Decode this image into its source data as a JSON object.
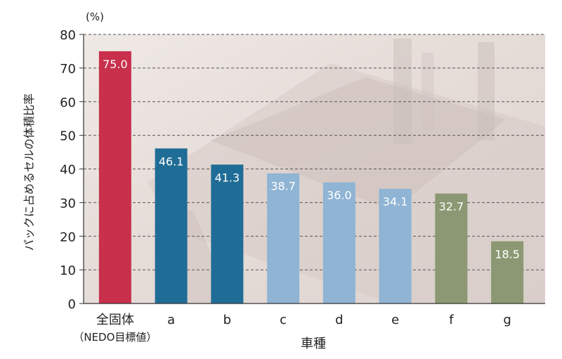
{
  "chart_data": {
    "type": "bar",
    "unit": "(%)",
    "ylabel": "パックに占めるセルの体積比率",
    "xlabel": "車種",
    "ylim": [
      0,
      80
    ],
    "yticks": [
      0,
      10,
      20,
      30,
      40,
      50,
      60,
      70,
      80
    ],
    "grid": "horizontal-dashed",
    "categories": [
      {
        "label": "全固体",
        "sublabel": "（NEDO目標値）",
        "value": 75.0,
        "value_label": "75.0",
        "color": "#c8304c"
      },
      {
        "label": "a",
        "value": 46.1,
        "value_label": "46.1",
        "color": "#1f6d96"
      },
      {
        "label": "b",
        "value": 41.3,
        "value_label": "41.3",
        "color": "#1f6d96"
      },
      {
        "label": "c",
        "value": 38.7,
        "value_label": "38.7",
        "color": "#8fb4d4"
      },
      {
        "label": "d",
        "value": 36.0,
        "value_label": "36.0",
        "color": "#8fb4d4"
      },
      {
        "label": "e",
        "value": 34.1,
        "value_label": "34.1",
        "color": "#8fb4d4"
      },
      {
        "label": "f",
        "value": 32.7,
        "value_label": "32.7",
        "color": "#8c9873"
      },
      {
        "label": "g",
        "value": 18.5,
        "value_label": "18.5",
        "color": "#8c9873"
      }
    ]
  }
}
